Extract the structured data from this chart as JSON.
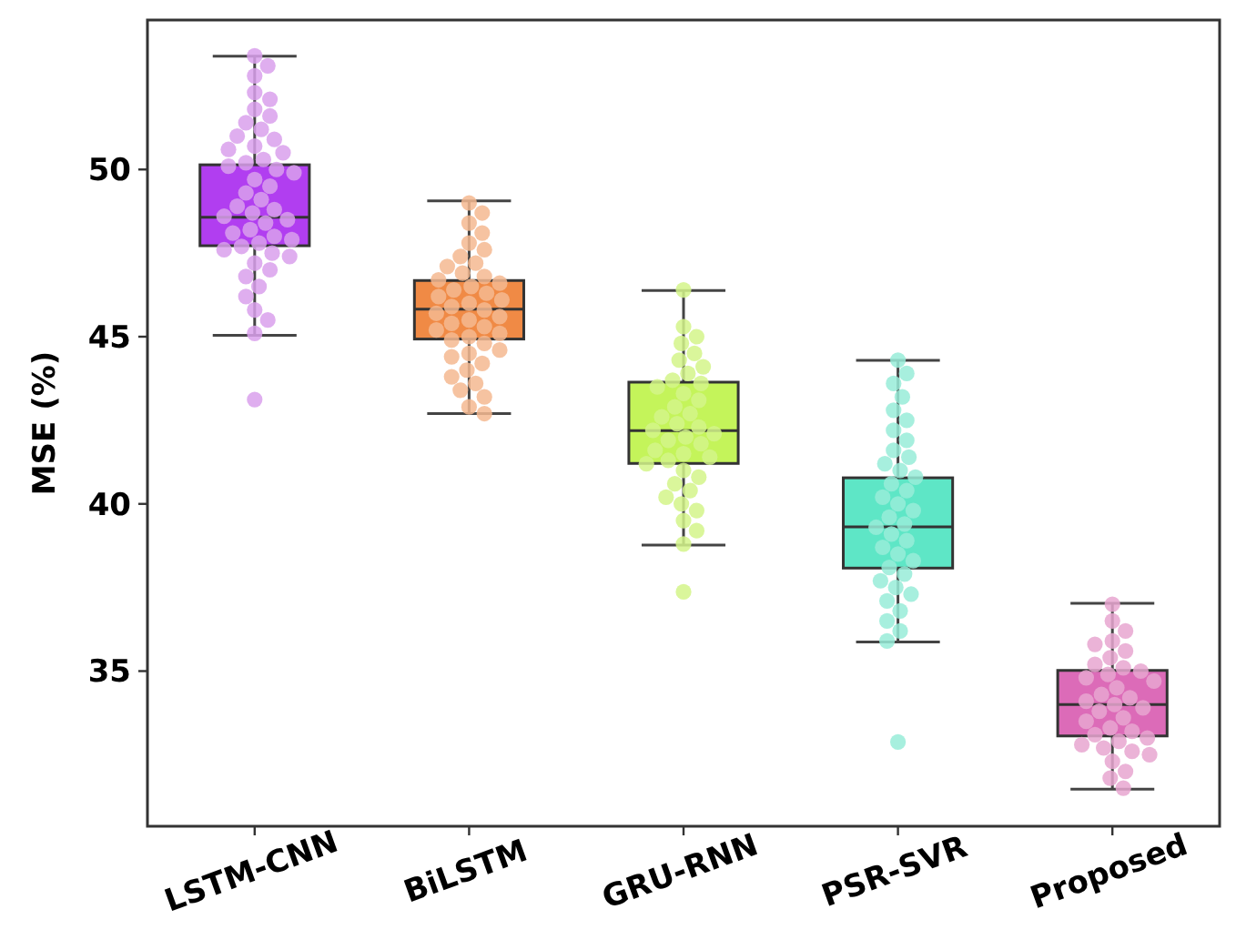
{
  "chart_data": {
    "type": "box",
    "ylabel": "MSE (%)",
    "categories": [
      "LSTM-CNN",
      "BiLSTM",
      "GRU-RNN",
      "PSR-SVR",
      "Proposed"
    ],
    "ylim": [
      30.36,
      54.47
    ],
    "yticks": [
      35,
      40,
      45,
      50
    ],
    "grid": false,
    "colors": [
      "#b13ef0",
      "#f08a45",
      "#c4f45a",
      "#5ee6c6",
      "#dc6bb8"
    ],
    "boxes": [
      {
        "low": 45.04,
        "q1": 47.72,
        "median": 48.57,
        "q3": 50.14,
        "high": 53.39,
        "outliers": [
          43.12
        ]
      },
      {
        "low": 42.7,
        "q1": 44.93,
        "median": 45.82,
        "q3": 46.68,
        "high": 49.06
      },
      {
        "low": 38.77,
        "q1": 41.21,
        "median": 42.19,
        "q3": 43.64,
        "high": 46.38,
        "outliers": [
          37.37
        ]
      },
      {
        "low": 35.87,
        "q1": 38.08,
        "median": 39.31,
        "q3": 40.78,
        "high": 44.29,
        "outliers": [
          32.88
        ]
      },
      {
        "low": 31.47,
        "q1": 33.06,
        "median": 34.0,
        "q3": 35.02,
        "high": 37.03
      }
    ],
    "series": [
      {
        "type": "scatter",
        "color": "#d9a0ec",
        "x": [
          "LSTM-CNN",
          "LSTM-CNN",
          "LSTM-CNN",
          "LSTM-CNN",
          "LSTM-CNN",
          "LSTM-CNN",
          "LSTM-CNN",
          "LSTM-CNN",
          "LSTM-CNN",
          "LSTM-CNN",
          "LSTM-CNN",
          "LSTM-CNN",
          "LSTM-CNN",
          "LSTM-CNN",
          "LSTM-CNN",
          "LSTM-CNN",
          "LSTM-CNN",
          "LSTM-CNN",
          "LSTM-CNN",
          "LSTM-CNN",
          "LSTM-CNN",
          "LSTM-CNN",
          "LSTM-CNN",
          "LSTM-CNN",
          "LSTM-CNN",
          "LSTM-CNN",
          "LSTM-CNN",
          "LSTM-CNN",
          "LSTM-CNN",
          "LSTM-CNN",
          "LSTM-CNN",
          "LSTM-CNN",
          "LSTM-CNN",
          "LSTM-CNN",
          "LSTM-CNN",
          "LSTM-CNN",
          "LSTM-CNN",
          "LSTM-CNN",
          "LSTM-CNN",
          "LSTM-CNN",
          "LSTM-CNN",
          "LSTM-CNN",
          "LSTM-CNN",
          "LSTM-CNN",
          "LSTM-CNN",
          "LSTM-CNN"
        ],
        "values": [
          53.4,
          53.1,
          52.8,
          52.3,
          52.1,
          51.8,
          51.6,
          51.4,
          51.2,
          51.0,
          50.9,
          50.7,
          50.6,
          50.5,
          50.3,
          50.2,
          50.1,
          50.0,
          49.9,
          49.7,
          49.5,
          49.3,
          49.1,
          48.9,
          48.8,
          48.7,
          48.6,
          48.5,
          48.4,
          48.2,
          48.1,
          48.0,
          47.9,
          47.8,
          47.7,
          47.6,
          47.5,
          47.4,
          47.2,
          47.0,
          46.8,
          46.5,
          46.2,
          45.8,
          45.5,
          45.1
        ]
      },
      {
        "type": "scatter",
        "color": "#f4b990",
        "x": [
          "BiLSTM",
          "BiLSTM",
          "BiLSTM",
          "BiLSTM",
          "BiLSTM",
          "BiLSTM",
          "BiLSTM",
          "BiLSTM",
          "BiLSTM",
          "BiLSTM",
          "BiLSTM",
          "BiLSTM",
          "BiLSTM",
          "BiLSTM",
          "BiLSTM",
          "BiLSTM",
          "BiLSTM",
          "BiLSTM",
          "BiLSTM",
          "BiLSTM",
          "BiLSTM",
          "BiLSTM",
          "BiLSTM",
          "BiLSTM",
          "BiLSTM",
          "BiLSTM",
          "BiLSTM",
          "BiLSTM",
          "BiLSTM",
          "BiLSTM",
          "BiLSTM",
          "BiLSTM",
          "BiLSTM",
          "BiLSTM",
          "BiLSTM",
          "BiLSTM",
          "BiLSTM",
          "BiLSTM",
          "BiLSTM",
          "BiLSTM",
          "BiLSTM",
          "BiLSTM"
        ],
        "values": [
          49.0,
          48.7,
          48.4,
          48.1,
          47.8,
          47.6,
          47.4,
          47.2,
          47.1,
          46.9,
          46.8,
          46.7,
          46.6,
          46.5,
          46.4,
          46.3,
          46.2,
          46.1,
          46.0,
          45.9,
          45.8,
          45.7,
          45.6,
          45.5,
          45.4,
          45.3,
          45.2,
          45.1,
          45.0,
          44.9,
          44.8,
          44.6,
          44.5,
          44.4,
          44.2,
          44.0,
          43.8,
          43.6,
          43.4,
          43.2,
          42.9,
          42.7
        ]
      },
      {
        "type": "scatter",
        "color": "#d4f58a",
        "x": [
          "GRU-RNN",
          "GRU-RNN",
          "GRU-RNN",
          "GRU-RNN",
          "GRU-RNN",
          "GRU-RNN",
          "GRU-RNN",
          "GRU-RNN",
          "GRU-RNN",
          "GRU-RNN",
          "GRU-RNN",
          "GRU-RNN",
          "GRU-RNN",
          "GRU-RNN",
          "GRU-RNN",
          "GRU-RNN",
          "GRU-RNN",
          "GRU-RNN",
          "GRU-RNN",
          "GRU-RNN",
          "GRU-RNN",
          "GRU-RNN",
          "GRU-RNN",
          "GRU-RNN",
          "GRU-RNN",
          "GRU-RNN",
          "GRU-RNN",
          "GRU-RNN",
          "GRU-RNN",
          "GRU-RNN",
          "GRU-RNN",
          "GRU-RNN",
          "GRU-RNN",
          "GRU-RNN",
          "GRU-RNN",
          "GRU-RNN",
          "GRU-RNN",
          "GRU-RNN"
        ],
        "values": [
          46.4,
          45.3,
          45.0,
          44.8,
          44.5,
          44.3,
          44.1,
          43.9,
          43.7,
          43.6,
          43.5,
          43.3,
          43.1,
          42.9,
          42.7,
          42.6,
          42.4,
          42.3,
          42.2,
          42.1,
          42.0,
          41.9,
          41.8,
          41.6,
          41.5,
          41.4,
          41.3,
          41.2,
          41.0,
          40.8,
          40.6,
          40.4,
          40.2,
          40.0,
          39.8,
          39.5,
          39.2,
          38.8
        ]
      },
      {
        "type": "scatter",
        "color": "#98ecd8",
        "x": [
          "PSR-SVR",
          "PSR-SVR",
          "PSR-SVR",
          "PSR-SVR",
          "PSR-SVR",
          "PSR-SVR",
          "PSR-SVR",
          "PSR-SVR",
          "PSR-SVR",
          "PSR-SVR",
          "PSR-SVR",
          "PSR-SVR",
          "PSR-SVR",
          "PSR-SVR",
          "PSR-SVR",
          "PSR-SVR",
          "PSR-SVR",
          "PSR-SVR",
          "PSR-SVR",
          "PSR-SVR",
          "PSR-SVR",
          "PSR-SVR",
          "PSR-SVR",
          "PSR-SVR",
          "PSR-SVR",
          "PSR-SVR",
          "PSR-SVR",
          "PSR-SVR",
          "PSR-SVR",
          "PSR-SVR",
          "PSR-SVR",
          "PSR-SVR",
          "PSR-SVR",
          "PSR-SVR",
          "PSR-SVR",
          "PSR-SVR"
        ],
        "values": [
          44.3,
          43.9,
          43.6,
          43.2,
          42.8,
          42.5,
          42.2,
          41.9,
          41.6,
          41.4,
          41.2,
          41.0,
          40.8,
          40.6,
          40.4,
          40.2,
          40.0,
          39.8,
          39.6,
          39.4,
          39.3,
          39.1,
          38.9,
          38.7,
          38.5,
          38.3,
          38.1,
          37.9,
          37.7,
          37.5,
          37.3,
          37.1,
          36.8,
          36.5,
          36.2,
          35.9
        ]
      },
      {
        "type": "scatter",
        "color": "#e8a6d0",
        "x": [
          "Proposed",
          "Proposed",
          "Proposed",
          "Proposed",
          "Proposed",
          "Proposed",
          "Proposed",
          "Proposed",
          "Proposed",
          "Proposed",
          "Proposed",
          "Proposed",
          "Proposed",
          "Proposed",
          "Proposed",
          "Proposed",
          "Proposed",
          "Proposed",
          "Proposed",
          "Proposed",
          "Proposed",
          "Proposed",
          "Proposed",
          "Proposed",
          "Proposed",
          "Proposed",
          "Proposed",
          "Proposed",
          "Proposed",
          "Proposed",
          "Proposed",
          "Proposed",
          "Proposed",
          "Proposed",
          "Proposed"
        ],
        "values": [
          37.0,
          36.5,
          36.2,
          35.9,
          35.8,
          35.6,
          35.4,
          35.2,
          35.1,
          35.0,
          34.9,
          34.8,
          34.7,
          34.5,
          34.3,
          34.2,
          34.1,
          34.0,
          33.9,
          33.8,
          33.6,
          33.5,
          33.3,
          33.2,
          33.1,
          33.0,
          32.9,
          32.8,
          32.7,
          32.6,
          32.5,
          32.3,
          32.0,
          31.8,
          31.5
        ]
      }
    ]
  }
}
